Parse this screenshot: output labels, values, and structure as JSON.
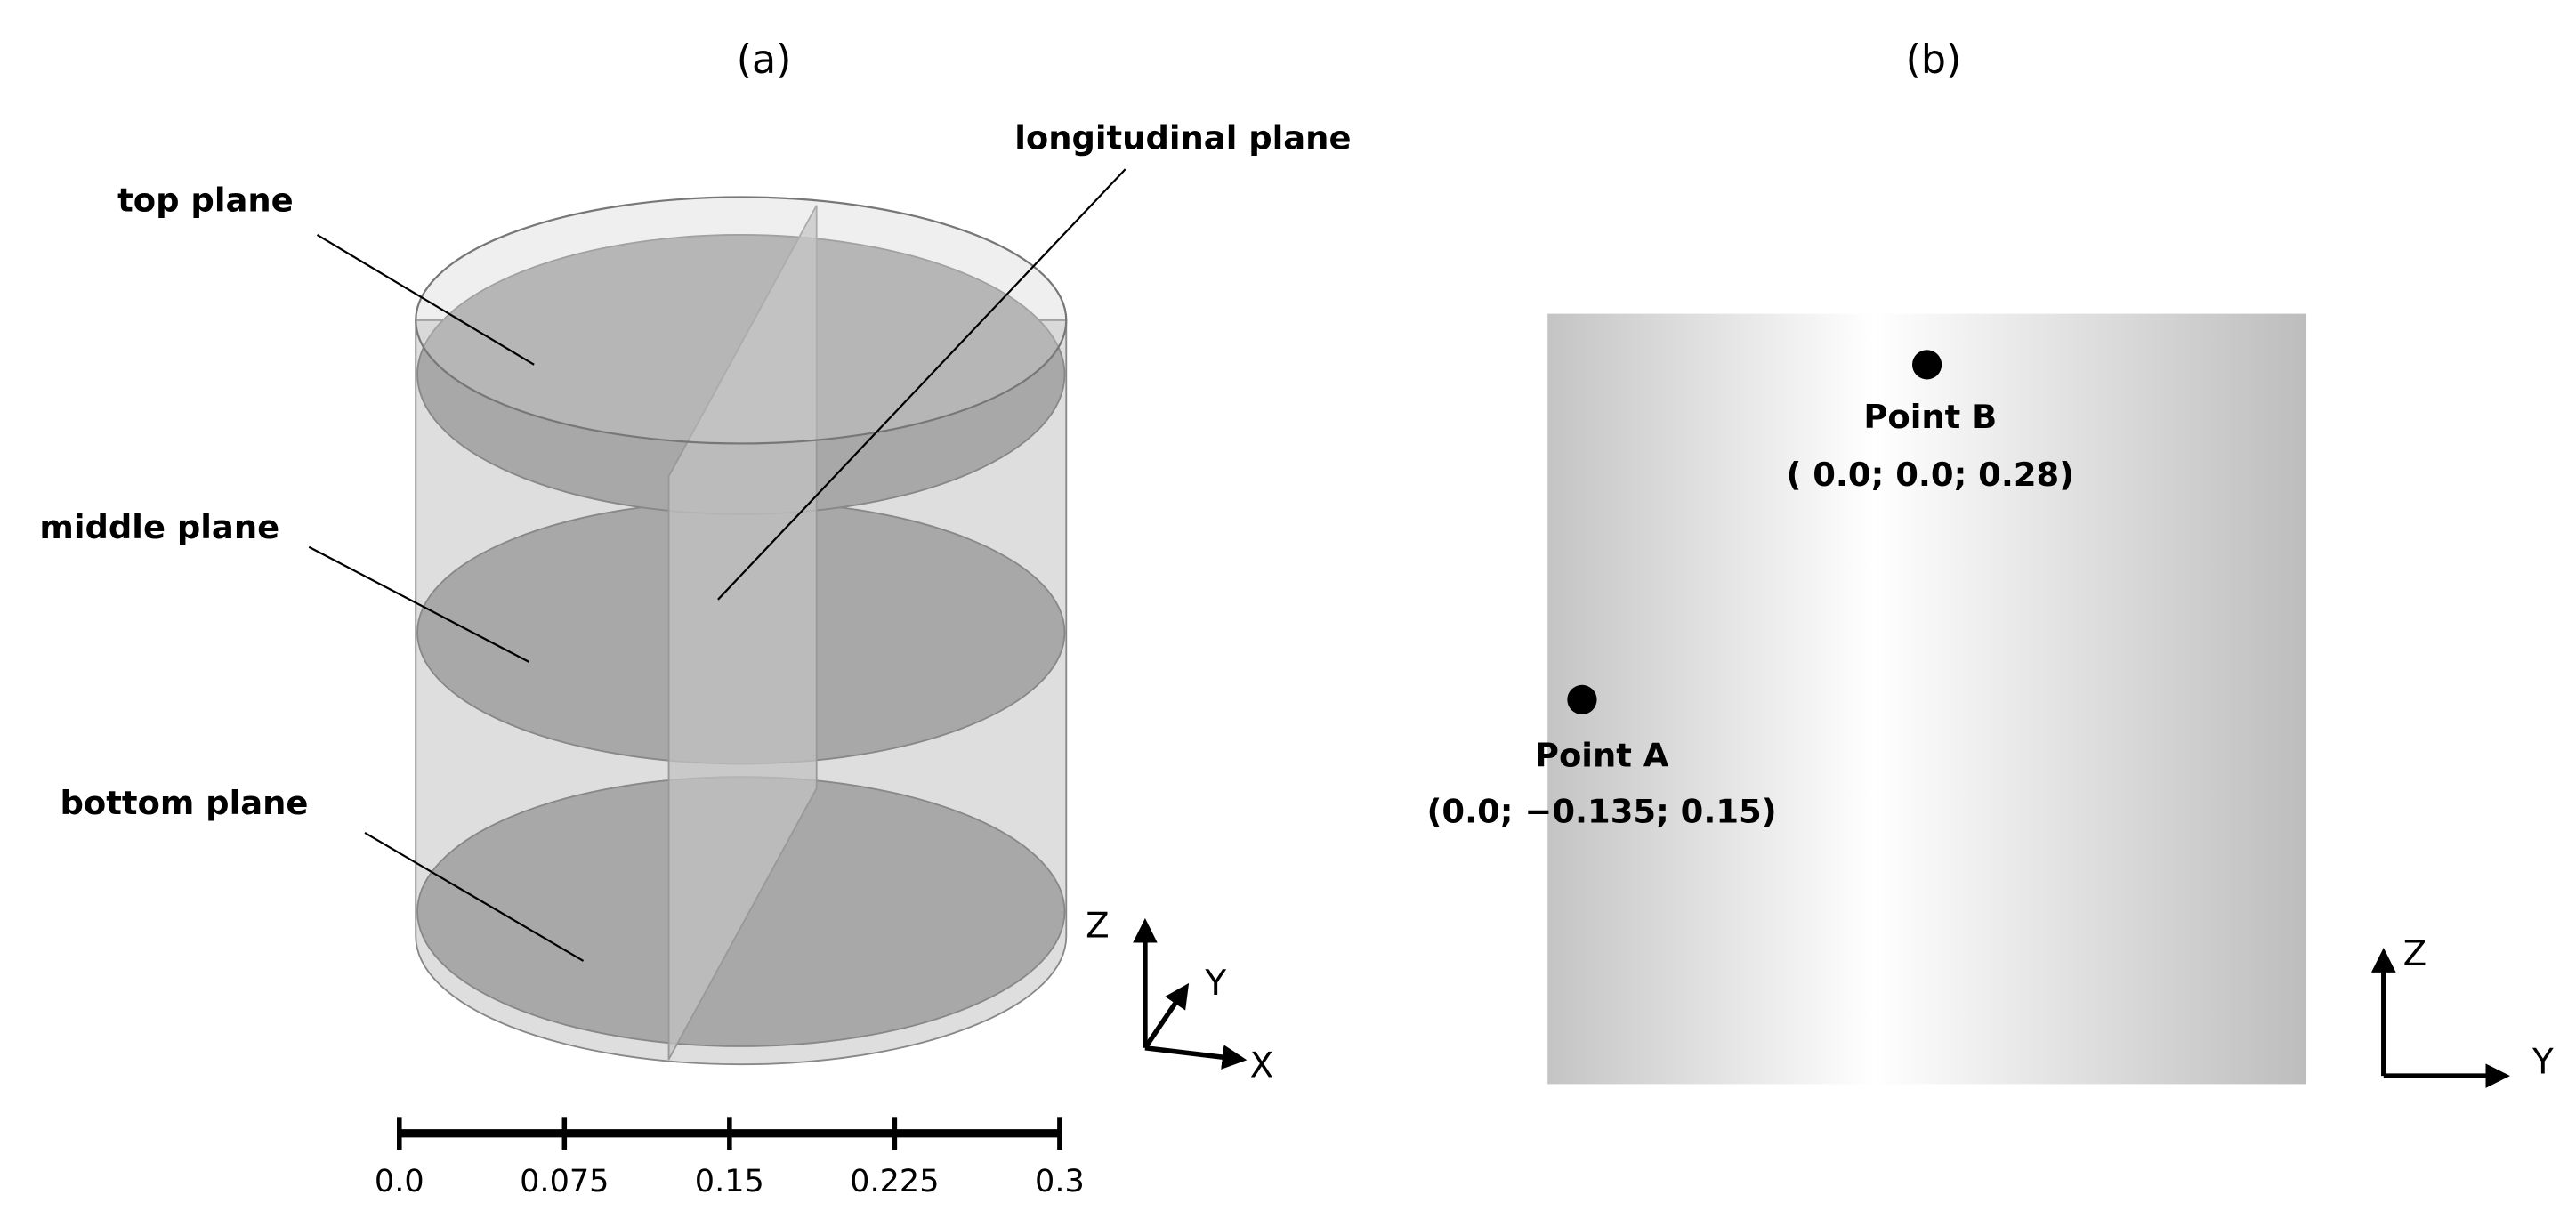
{
  "panels": [
    {
      "label": "(a)",
      "annotations": [
        "top plane",
        "middle plane",
        "bottom plane",
        "longitudinal plane"
      ],
      "axes": [
        "Z",
        "Y",
        "X"
      ],
      "scale_bar": [
        "0.0",
        "0.075",
        "0.15",
        "0.225",
        "0.3"
      ]
    },
    {
      "label": "(b)",
      "points": [
        {
          "name": "Point B",
          "coords": "( 0.0; 0.0; 0.28)"
        },
        {
          "name": "Point A",
          "coords": "(0.0; −0.135; 0.15)"
        }
      ],
      "axes": [
        "Z",
        "Y"
      ]
    }
  ]
}
